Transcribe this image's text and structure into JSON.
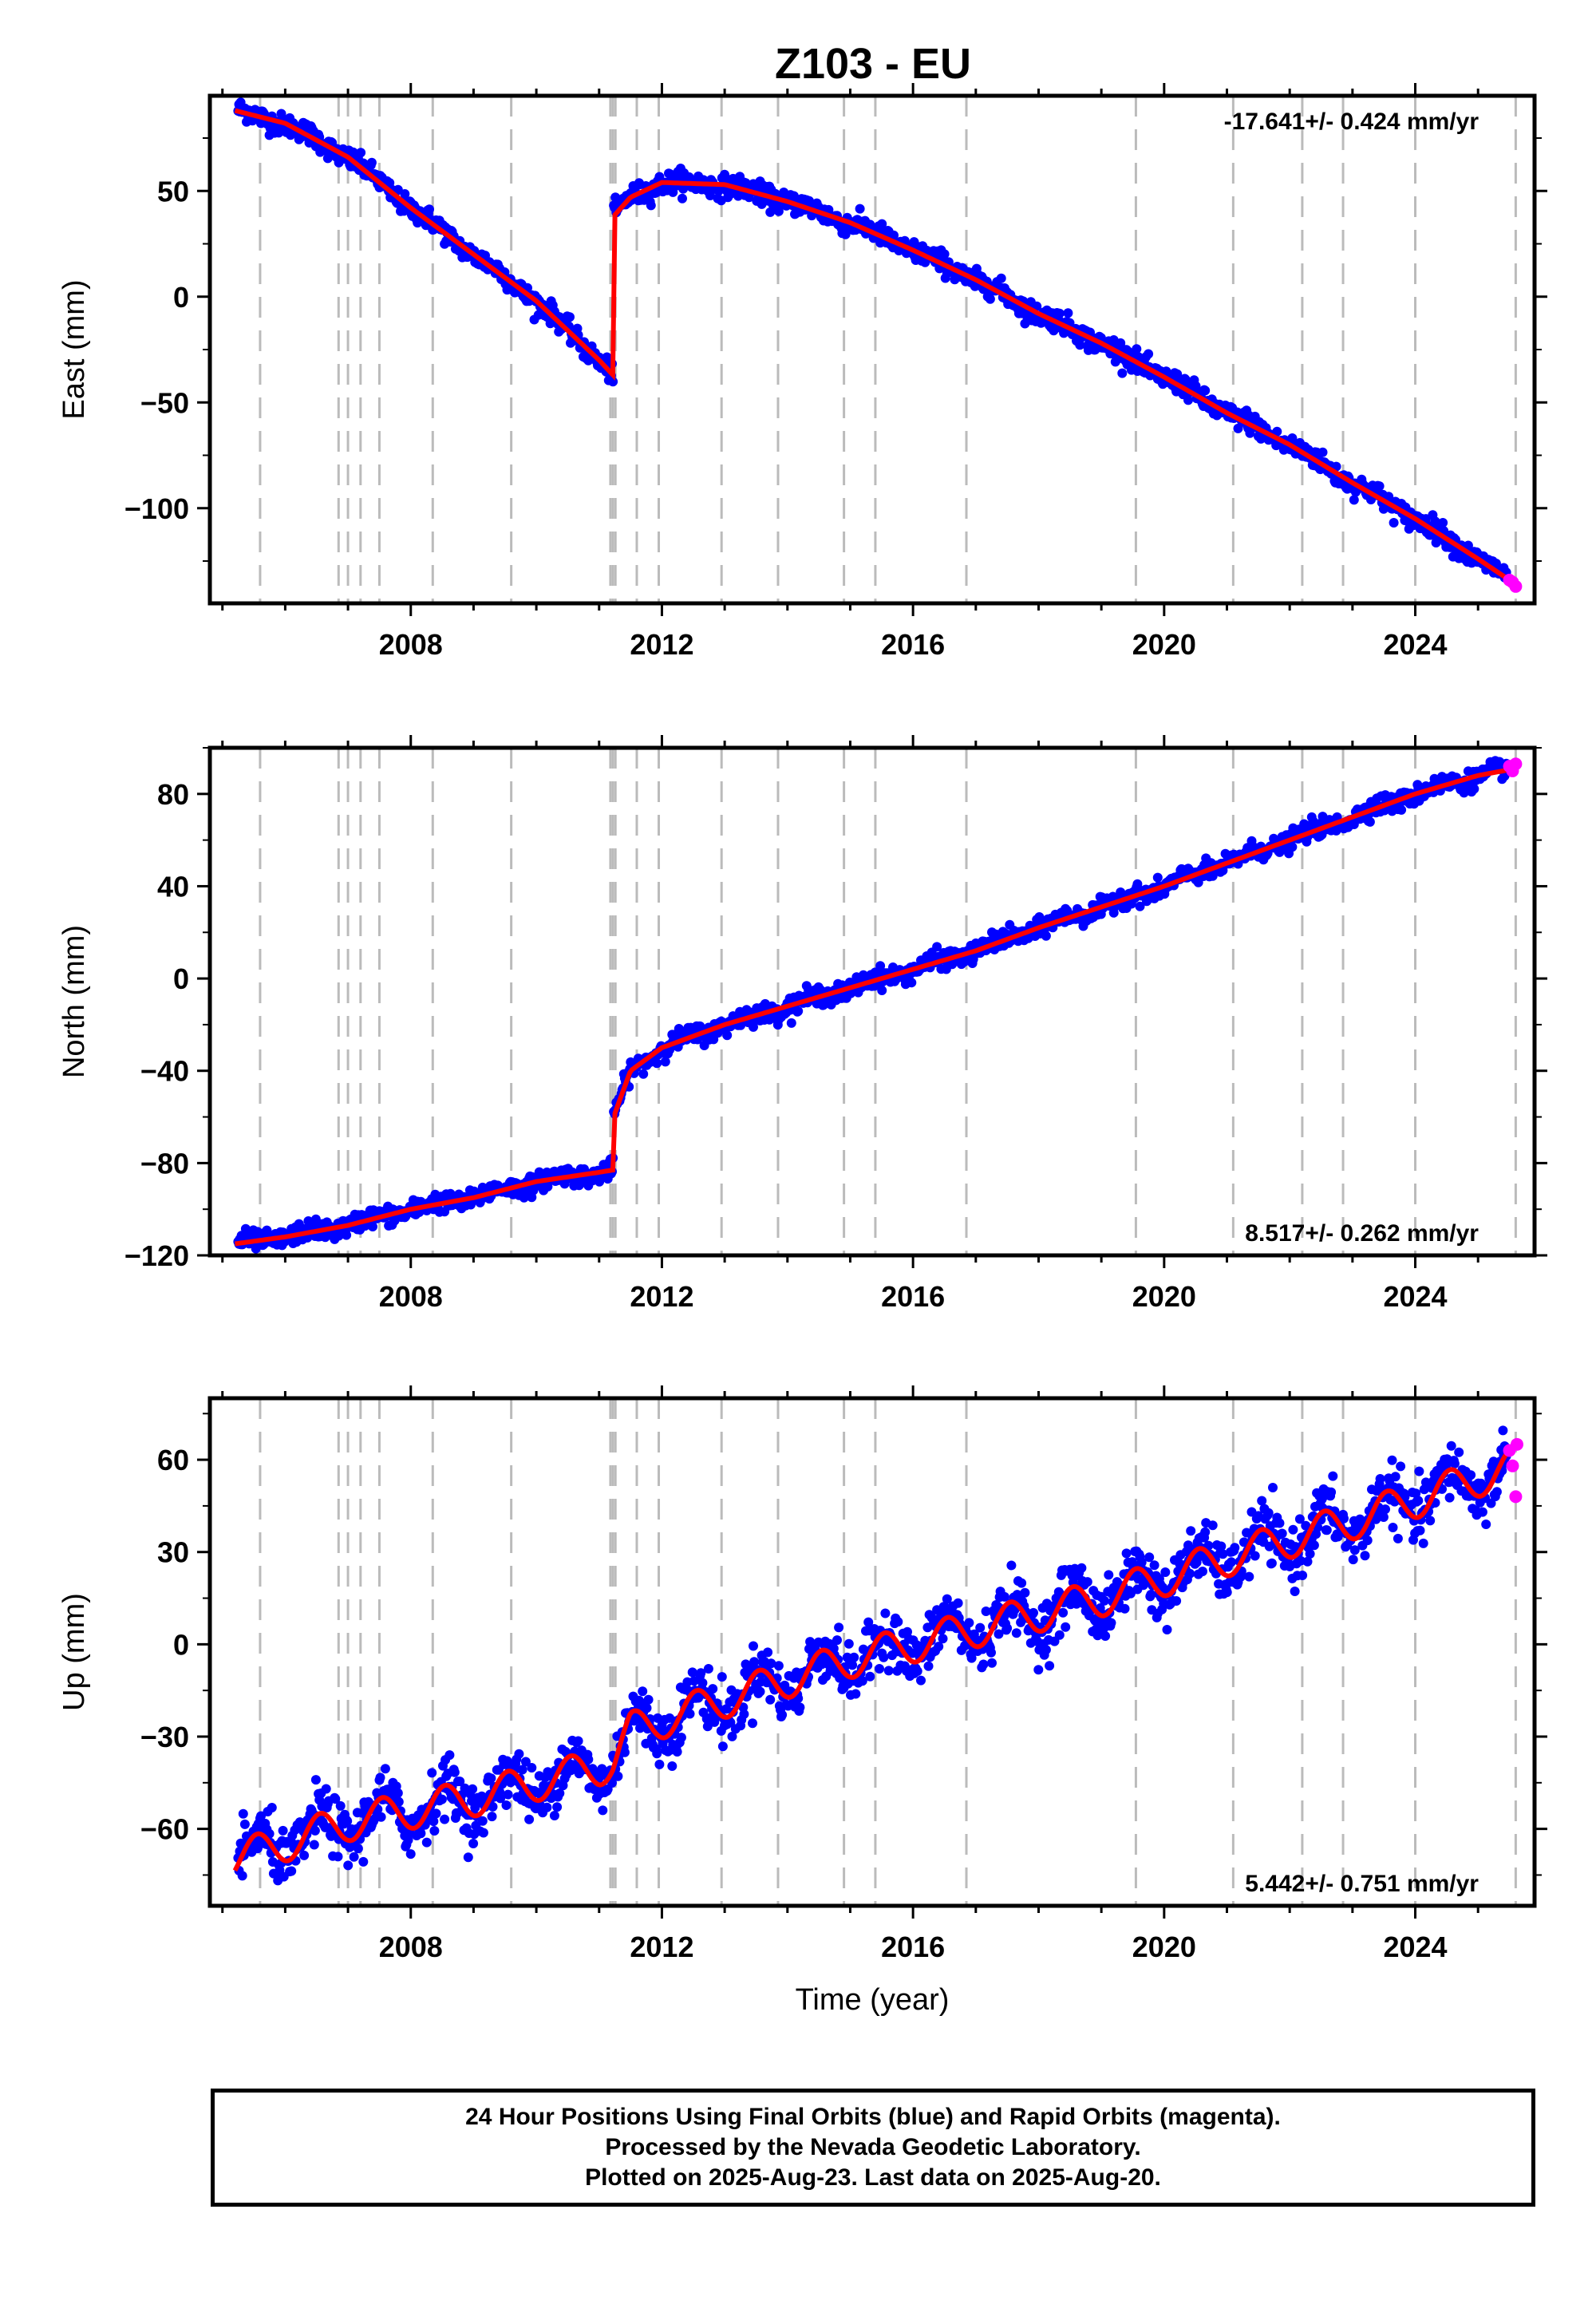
{
  "title": "Z103 - EU",
  "colors": {
    "final_orbits": "#0000ff",
    "rapid_orbits": "#ff00ff",
    "model": "#ff0000",
    "event_lines": "#bbbbbb",
    "frame": "#000000"
  },
  "footer": {
    "line1": "24 Hour Positions Using Final Orbits (blue) and Rapid Orbits (magenta).",
    "line2": "Processed by the Nevada Geodetic Laboratory.",
    "line3": "Plotted on 2025-Aug-23. Last data on 2025-Aug-20."
  },
  "chart_data": [
    {
      "type": "scatter",
      "component": "east",
      "ylabel": "East (mm)",
      "xlabel": "",
      "rate_label": "-17.641+/- 0.424 mm/yr",
      "rate_position": "top-right",
      "xlim": [
        2004.8,
        2025.9
      ],
      "ylim": [
        -145,
        95
      ],
      "xticks": [
        2008,
        2012,
        2016,
        2020,
        2024
      ],
      "yticks": [
        -100,
        -50,
        0,
        50
      ],
      "grid": false,
      "event_lines": [
        2005.6,
        2006.85,
        2007.0,
        2007.2,
        2007.5,
        2008.35,
        2009.6,
        2011.18,
        2011.22,
        2011.26,
        2011.6,
        2011.95,
        2012.95,
        2013.85,
        2014.9,
        2015.4,
        2016.85,
        2019.55,
        2021.1,
        2022.2,
        2022.85,
        2024.0,
        2025.6
      ],
      "model": {
        "x": [
          2005.2,
          2006.0,
          2007.0,
          2008.0,
          2009.0,
          2010.0,
          2011.0,
          2011.22,
          2011.23,
          2011.5,
          2012.0,
          2013.0,
          2014.0,
          2015.0,
          2016.0,
          2017.0,
          2018.0,
          2019.0,
          2020.0,
          2021.0,
          2022.0,
          2023.0,
          2024.0,
          2025.0,
          2025.6
        ],
        "y": [
          88,
          82,
          66,
          42,
          20,
          -2,
          -30,
          -37,
          38,
          47,
          54,
          53,
          45,
          35,
          22,
          8,
          -8,
          -22,
          -38,
          -55,
          -70,
          -88,
          -105,
          -124,
          -136
        ]
      },
      "rapid_points": {
        "x": [
          2025.5,
          2025.55,
          2025.6
        ],
        "y": [
          -134,
          -135,
          -137
        ]
      },
      "noise_mm": 2.5
    },
    {
      "type": "scatter",
      "component": "north",
      "ylabel": "North (mm)",
      "xlabel": "",
      "rate_label": "8.517+/- 0.262 mm/yr",
      "rate_position": "bottom-right",
      "xlim": [
        2004.8,
        2025.9
      ],
      "ylim": [
        -120,
        100
      ],
      "xticks": [
        2008,
        2012,
        2016,
        2020,
        2024
      ],
      "yticks": [
        -120,
        -80,
        -40,
        0,
        40,
        80
      ],
      "grid": false,
      "event_lines": [
        2005.6,
        2006.85,
        2007.0,
        2007.2,
        2007.5,
        2008.35,
        2009.6,
        2011.18,
        2011.22,
        2011.26,
        2011.6,
        2011.95,
        2012.95,
        2013.85,
        2014.9,
        2015.4,
        2016.85,
        2019.55,
        2021.1,
        2022.2,
        2022.85,
        2024.0,
        2025.6
      ],
      "model": {
        "x": [
          2005.2,
          2006.0,
          2007.0,
          2008.0,
          2009.0,
          2010.0,
          2011.0,
          2011.22,
          2011.23,
          2011.5,
          2012.0,
          2013.0,
          2014.0,
          2015.0,
          2016.0,
          2017.0,
          2018.0,
          2019.0,
          2020.0,
          2021.0,
          2022.0,
          2023.0,
          2024.0,
          2025.0,
          2025.6
        ],
        "y": [
          -115,
          -112,
          -107,
          -100,
          -95,
          -88,
          -84,
          -83,
          -60,
          -40,
          -30,
          -20,
          -12,
          -4,
          4,
          12,
          22,
          31,
          40,
          50,
          60,
          70,
          80,
          88,
          91
        ]
      },
      "rapid_points": {
        "x": [
          2025.5,
          2025.55,
          2025.6
        ],
        "y": [
          92,
          90,
          93
        ]
      },
      "noise_mm": 2.0
    },
    {
      "type": "scatter",
      "component": "up",
      "ylabel": "Up (mm)",
      "xlabel": "Time (year)",
      "rate_label": "5.442+/- 0.751 mm/yr",
      "rate_position": "bottom-right",
      "xlim": [
        2004.8,
        2025.9
      ],
      "ylim": [
        -85,
        80
      ],
      "xticks": [
        2008,
        2012,
        2016,
        2020,
        2024
      ],
      "yticks": [
        -60,
        -30,
        0,
        30,
        60
      ],
      "grid": false,
      "event_lines": [
        2005.6,
        2006.85,
        2007.0,
        2007.2,
        2007.5,
        2008.35,
        2009.6,
        2011.18,
        2011.22,
        2011.26,
        2011.6,
        2011.95,
        2012.95,
        2013.85,
        2014.9,
        2015.4,
        2016.85,
        2019.55,
        2021.1,
        2022.2,
        2022.85,
        2024.0,
        2025.6
      ],
      "model": {
        "x": [
          2005.2,
          2007.0,
          2009.0,
          2011.0,
          2011.22,
          2011.5,
          2013.0,
          2015.0,
          2017.0,
          2019.0,
          2021.0,
          2023.0,
          2025.6
        ],
        "y": [
          -70,
          -58,
          -50,
          -40,
          -38,
          -28,
          -18,
          -5,
          5,
          15,
          28,
          40,
          58
        ]
      },
      "seasonal_amplitude_mm": 6,
      "rapid_points": {
        "x": [
          2025.5,
          2025.55,
          2025.6,
          2025.62
        ],
        "y": [
          63,
          58,
          48,
          65
        ]
      },
      "noise_mm": 4.5
    }
  ]
}
